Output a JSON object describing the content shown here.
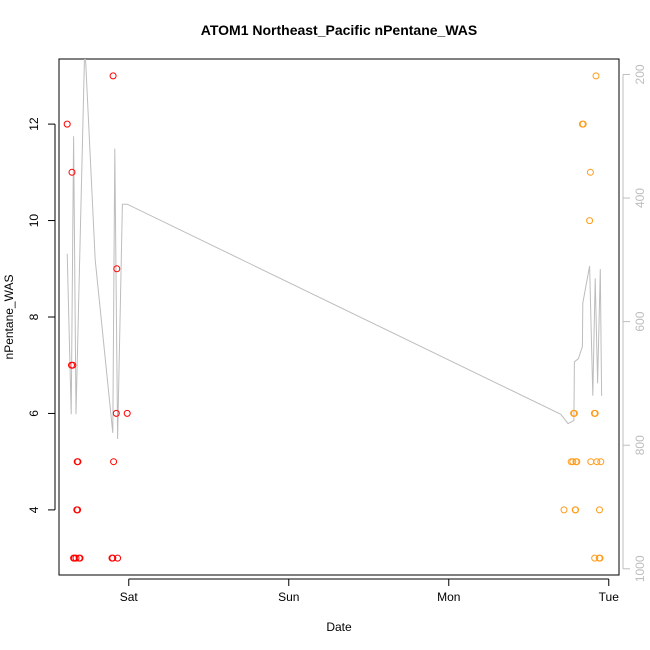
{
  "chart_data": {
    "type": "scatter",
    "title": "ATOM1 Northeast_Pacific nPentane_WAS",
    "xlabel": "Date",
    "ylabel": "nPentane_WAS",
    "x_unit": "days",
    "xlim": [
      -0.436,
      3.064
    ],
    "ylim": [
      2.65,
      13.35
    ],
    "y2lim": [
      1010,
      175
    ],
    "x_ticks": [
      {
        "value": 0,
        "label": "Sat"
      },
      {
        "value": 1,
        "label": "Sun"
      },
      {
        "value": 2,
        "label": "Mon"
      },
      {
        "value": 3,
        "label": "Tue"
      }
    ],
    "y_ticks": [
      4,
      6,
      8,
      10,
      12
    ],
    "y2_ticks": [
      200,
      400,
      600,
      800,
      1000
    ],
    "colors": {
      "series_red": "#ff0000",
      "series_orange": "#ff9c1a",
      "line": "#bdbdbd",
      "axis": "#000000",
      "right_axis": "#bdbdbd"
    },
    "series": [
      {
        "color": "#ff0000",
        "marker": "open-circle",
        "points": [
          [
            -0.385,
            12
          ],
          [
            -0.355,
            11
          ],
          [
            -0.358,
            7
          ],
          [
            -0.35,
            7
          ],
          [
            -0.345,
            3
          ],
          [
            -0.34,
            3
          ],
          [
            -0.33,
            3
          ],
          [
            -0.325,
            4
          ],
          [
            -0.32,
            4
          ],
          [
            -0.322,
            5
          ],
          [
            -0.318,
            5
          ],
          [
            -0.31,
            3
          ],
          [
            -0.305,
            3
          ],
          [
            -0.098,
            13
          ],
          [
            -0.105,
            3
          ],
          [
            -0.1,
            3
          ],
          [
            -0.095,
            5
          ],
          [
            -0.075,
            9
          ],
          [
            -0.078,
            6
          ],
          [
            -0.07,
            3
          ],
          [
            -0.01,
            6
          ]
        ]
      },
      {
        "color": "#ff9c1a",
        "marker": "open-circle",
        "points": [
          [
            2.72,
            4
          ],
          [
            2.765,
            5
          ],
          [
            2.775,
            5
          ],
          [
            2.78,
            6
          ],
          [
            2.785,
            6
          ],
          [
            2.79,
            4
          ],
          [
            2.793,
            4
          ],
          [
            2.795,
            5
          ],
          [
            2.8,
            5
          ],
          [
            2.835,
            12
          ],
          [
            2.84,
            12
          ],
          [
            2.885,
            11
          ],
          [
            2.88,
            10
          ],
          [
            2.888,
            5
          ],
          [
            2.91,
            6
          ],
          [
            2.915,
            6
          ],
          [
            2.92,
            13
          ],
          [
            2.912,
            3
          ],
          [
            2.925,
            5
          ],
          [
            2.94,
            3
          ],
          [
            2.942,
            4
          ],
          [
            2.95,
            5
          ],
          [
            2.945,
            3
          ]
        ]
      }
    ],
    "line_series": {
      "axis": "right",
      "color": "#bdbdbd",
      "points": [
        [
          -0.385,
          490
        ],
        [
          -0.36,
          750
        ],
        [
          -0.345,
          300
        ],
        [
          -0.33,
          750
        ],
        [
          -0.275,
          150
        ],
        [
          -0.21,
          500
        ],
        [
          -0.1,
          780
        ],
        [
          -0.087,
          320
        ],
        [
          -0.07,
          790
        ],
        [
          -0.04,
          410
        ],
        [
          -0.01,
          410
        ],
        [
          2.7,
          750
        ],
        [
          2.745,
          765
        ],
        [
          2.782,
          760
        ],
        [
          2.785,
          665
        ],
        [
          2.81,
          660
        ],
        [
          2.835,
          640
        ],
        [
          2.838,
          570
        ],
        [
          2.88,
          510
        ],
        [
          2.9,
          720
        ],
        [
          2.915,
          530
        ],
        [
          2.93,
          700
        ],
        [
          2.947,
          515
        ],
        [
          2.955,
          720
        ]
      ]
    }
  }
}
